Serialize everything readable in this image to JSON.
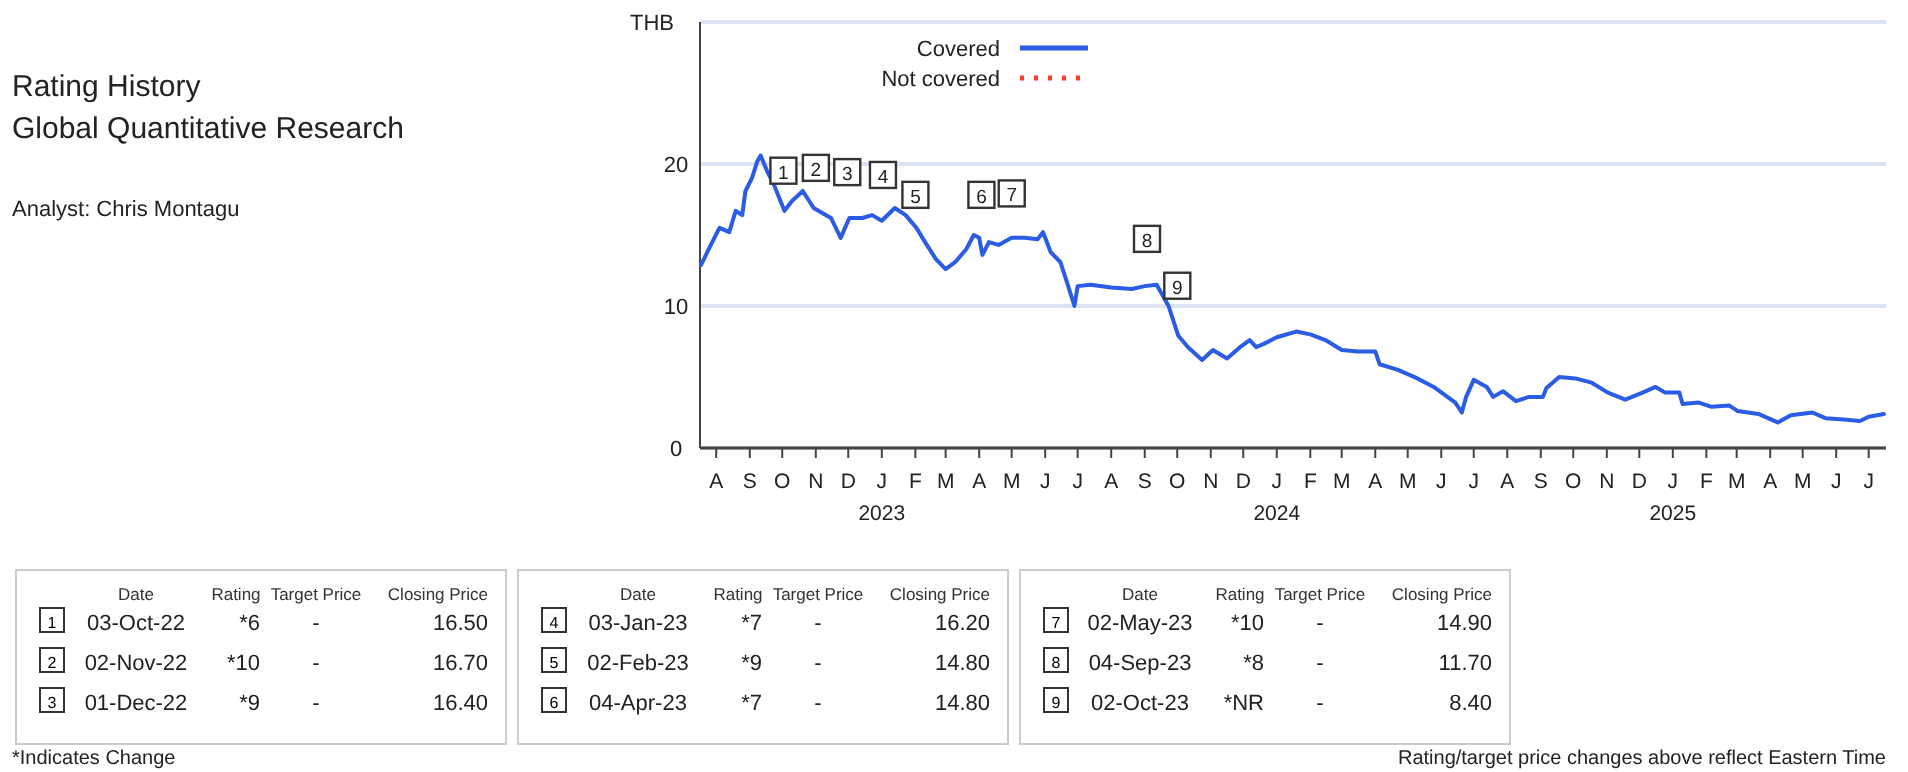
{
  "chart_data": {
    "type": "line",
    "title": "Rating History",
    "subtitle": "Global Quantitative Research",
    "ylabel": "THB",
    "xlim": [
      "2022-07-17",
      "2025-07-17"
    ],
    "ylim": [
      0,
      30
    ],
    "yticks": [
      0,
      10,
      20,
      {
        "value": 30,
        "label": null
      }
    ],
    "xticks": [
      {
        "value": "2022-08-01",
        "label": "A"
      },
      {
        "value": "2022-09-01",
        "label": "S"
      },
      {
        "value": "2022-10-01",
        "label": "O"
      },
      {
        "value": "2022-11-01",
        "label": "N"
      },
      {
        "value": "2022-12-01",
        "label": "D"
      },
      {
        "value": "2023-01-01",
        "label": "J\n2023"
      },
      {
        "value": "2023-02-01",
        "label": "F"
      },
      {
        "value": "2023-03-01",
        "label": "M"
      },
      {
        "value": "2023-04-01",
        "label": "A"
      },
      {
        "value": "2023-05-01",
        "label": "M"
      },
      {
        "value": "2023-06-01",
        "label": "J"
      },
      {
        "value": "2023-07-01",
        "label": "J"
      },
      {
        "value": "2023-08-01",
        "label": "A"
      },
      {
        "value": "2023-09-01",
        "label": "S"
      },
      {
        "value": "2023-10-01",
        "label": "O"
      },
      {
        "value": "2023-11-01",
        "label": "N"
      },
      {
        "value": "2023-12-01",
        "label": "D"
      },
      {
        "value": "2024-01-01",
        "label": "J\n2024"
      },
      {
        "value": "2024-02-01",
        "label": "F"
      },
      {
        "value": "2024-03-01",
        "label": "M"
      },
      {
        "value": "2024-04-01",
        "label": "A"
      },
      {
        "value": "2024-05-01",
        "label": "M"
      },
      {
        "value": "2024-06-01",
        "label": "J"
      },
      {
        "value": "2024-07-01",
        "label": "J"
      },
      {
        "value": "2024-08-01",
        "label": "A"
      },
      {
        "value": "2024-09-01",
        "label": "S"
      },
      {
        "value": "2024-10-01",
        "label": "O"
      },
      {
        "value": "2024-11-01",
        "label": "N"
      },
      {
        "value": "2024-12-01",
        "label": "D"
      },
      {
        "value": "2025-01-01",
        "label": "J\n2025"
      },
      {
        "value": "2025-02-01",
        "label": "F"
      },
      {
        "value": "2025-03-01",
        "label": "M"
      },
      {
        "value": "2025-04-01",
        "label": "A"
      },
      {
        "value": "2025-05-01",
        "label": "M"
      },
      {
        "value": "2025-06-01",
        "label": "J"
      },
      {
        "value": "2025-07-01",
        "label": "J"
      }
    ],
    "grid": "y",
    "legend": "top left",
    "series": [
      {
        "name": "Covered",
        "color": "#2b5ce6",
        "line_style": "solid",
        "x": [
          "2022-07-18",
          "2022-07-27",
          "2022-08-04",
          "2022-08-13",
          "2022-08-19",
          "2022-08-25",
          "2022-08-28",
          "2022-09-03",
          "2022-09-08",
          "2022-09-11",
          "2022-09-17",
          "2022-09-23",
          "2022-10-03",
          "2022-10-10",
          "2022-10-20",
          "2022-10-30",
          "2022-11-15",
          "2022-11-24",
          "2022-12-02",
          "2022-12-14",
          "2022-12-23",
          "2023-01-01",
          "2023-01-13",
          "2023-01-23",
          "2023-02-02",
          "2023-02-10",
          "2023-02-20",
          "2023-03-01",
          "2023-03-10",
          "2023-03-20",
          "2023-03-27",
          "2023-04-01",
          "2023-04-04",
          "2023-04-10",
          "2023-04-19",
          "2023-05-01",
          "2023-05-13",
          "2023-05-25",
          "2023-05-30",
          "2023-06-06",
          "2023-06-15",
          "2023-06-21",
          "2023-06-28",
          "2023-07-01",
          "2023-07-13",
          "2023-08-01",
          "2023-08-20",
          "2023-09-01",
          "2023-09-12",
          "2023-09-23",
          "2023-10-02",
          "2023-10-11",
          "2023-10-24",
          "2023-11-03",
          "2023-11-16",
          "2023-11-28",
          "2023-12-07",
          "2023-12-13",
          "2023-12-19",
          "2024-01-01",
          "2024-01-19",
          "2024-02-01",
          "2024-02-15",
          "2024-03-01",
          "2024-03-16",
          "2024-04-01",
          "2024-04-05",
          "2024-04-22",
          "2024-05-10",
          "2024-05-25",
          "2024-06-14",
          "2024-06-20",
          "2024-06-24",
          "2024-07-01",
          "2024-07-13",
          "2024-07-19",
          "2024-07-28",
          "2024-08-09",
          "2024-08-21",
          "2024-09-03",
          "2024-09-06",
          "2024-09-18",
          "2024-10-03",
          "2024-10-18",
          "2024-11-02",
          "2024-11-18",
          "2024-12-04",
          "2024-12-16",
          "2024-12-25",
          "2025-01-07",
          "2025-01-10",
          "2025-01-25",
          "2025-02-06",
          "2025-02-22",
          "2025-03-02",
          "2025-03-21",
          "2025-04-08",
          "2025-04-20",
          "2025-05-10",
          "2025-05-22",
          "2025-06-08",
          "2025-06-23",
          "2025-07-01",
          "2025-07-15"
        ],
        "values": [
          12.9,
          14.3,
          15.5,
          15.2,
          16.7,
          16.4,
          18.1,
          19.0,
          20.2,
          20.6,
          19.5,
          18.6,
          16.7,
          17.4,
          18.1,
          16.9,
          16.2,
          14.8,
          16.2,
          16.2,
          16.4,
          16.0,
          16.9,
          16.4,
          15.5,
          14.5,
          13.3,
          12.6,
          13.1,
          14.0,
          15.0,
          14.8,
          13.6,
          14.5,
          14.3,
          14.8,
          14.8,
          14.7,
          15.2,
          13.8,
          13.1,
          11.7,
          10.0,
          11.4,
          11.5,
          11.3,
          11.2,
          11.4,
          11.5,
          10.0,
          7.9,
          7.1,
          6.2,
          6.9,
          6.3,
          7.1,
          7.6,
          7.1,
          7.3,
          7.8,
          8.2,
          8.0,
          7.6,
          6.9,
          6.8,
          6.8,
          5.9,
          5.5,
          4.9,
          4.3,
          3.2,
          2.5,
          3.6,
          4.8,
          4.3,
          3.6,
          4.0,
          3.3,
          3.6,
          3.6,
          4.2,
          5.0,
          4.9,
          4.6,
          3.9,
          3.4,
          3.9,
          4.3,
          3.9,
          3.9,
          3.1,
          3.2,
          2.9,
          3.0,
          2.6,
          2.4,
          1.8,
          2.3,
          2.5,
          2.1,
          2.0,
          1.9,
          2.2,
          2.4
        ]
      },
      {
        "name": "Not covered",
        "color": "#ff3b30",
        "line_style": "dotted"
      }
    ],
    "annotations": [
      {
        "text": "1",
        "x": "2022-10-03",
        "y": 16.5
      },
      {
        "text": "2",
        "x": "2022-11-02",
        "y": 16.7
      },
      {
        "text": "3",
        "x": "2022-12-01",
        "y": 16.4
      },
      {
        "text": "4",
        "x": "2023-01-03",
        "y": 16.2
      },
      {
        "text": "5",
        "x": "2023-02-02",
        "y": 14.8
      },
      {
        "text": "6",
        "x": "2023-04-04",
        "y": 14.8
      },
      {
        "text": "7",
        "x": "2023-05-02",
        "y": 14.9
      },
      {
        "text": "8",
        "x": "2023-09-04",
        "y": 11.7
      },
      {
        "text": "9",
        "x": "2023-10-02",
        "y": 8.4
      },
      "Analyst: Chris Montagu",
      "Date",
      "Rating",
      "Target Price",
      "Closing Price",
      "03-Oct-22",
      "*6",
      "-",
      "16.50",
      "02-Nov-22",
      "*10",
      "-",
      "16.70",
      "01-Dec-22",
      "*9",
      "-",
      "16.40",
      "Date",
      "Rating",
      "Target Price",
      "Closing Price",
      "03-Jan-23",
      "*7",
      "-",
      "16.20",
      "02-Feb-23",
      "*9",
      "-",
      "14.80",
      "04-Apr-23",
      "*7",
      "-",
      "14.80",
      "Date",
      "Rating",
      "Target Price",
      "Closing Price",
      "02-May-23",
      "*10",
      "-",
      "14.90",
      "04-Sep-23",
      "*8",
      "-",
      "11.70",
      "02-Oct-23",
      "*NR",
      "-",
      "8.40",
      "*Indicates Change",
      "Rating/target price changes above reflect Eastern Time"
    ]
  }
}
